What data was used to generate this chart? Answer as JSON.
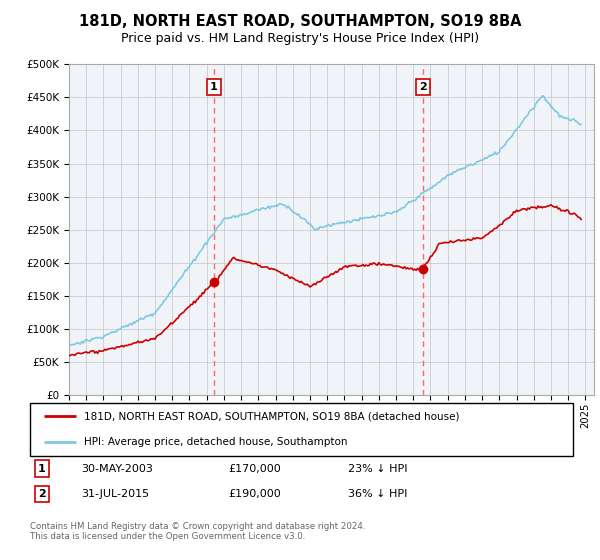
{
  "title": "181D, NORTH EAST ROAD, SOUTHAMPTON, SO19 8BA",
  "subtitle": "Price paid vs. HM Land Registry's House Price Index (HPI)",
  "ylim": [
    0,
    500000
  ],
  "yticks": [
    0,
    50000,
    100000,
    150000,
    200000,
    250000,
    300000,
    350000,
    400000,
    450000,
    500000
  ],
  "xlim_start": 1995.0,
  "xlim_end": 2025.5,
  "sale1_year": 2003.41,
  "sale1_price": 170000,
  "sale1_label": "1",
  "sale2_year": 2015.58,
  "sale2_price": 190000,
  "sale2_label": "2",
  "hpi_color": "#7ec8e3",
  "price_color": "#cc0000",
  "vline_color": "#ff6666",
  "grid_color": "#cccccc",
  "plot_bg_color": "#f0f4f8",
  "background_color": "#ffffff",
  "legend_label1": "181D, NORTH EAST ROAD, SOUTHAMPTON, SO19 8BA (detached house)",
  "legend_label2": "HPI: Average price, detached house, Southampton",
  "table_row1": [
    "1",
    "30-MAY-2003",
    "£170,000",
    "23% ↓ HPI"
  ],
  "table_row2": [
    "2",
    "31-JUL-2015",
    "£190,000",
    "36% ↓ HPI"
  ],
  "footer": "Contains HM Land Registry data © Crown copyright and database right 2024.\nThis data is licensed under the Open Government Licence v3.0.",
  "title_fontsize": 10.5,
  "subtitle_fontsize": 9,
  "tick_fontsize": 7.5
}
